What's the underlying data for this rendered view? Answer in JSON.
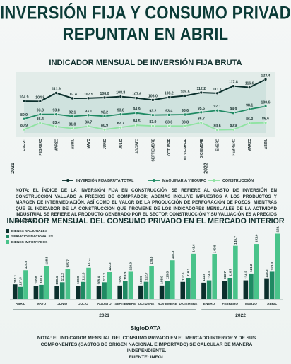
{
  "headline": [
    "INVERSIÓN FIJA Y CONSUMO PRIVADO",
    "REPUNTAN EN ABRIL"
  ],
  "credit": "SigloDATA",
  "chart_data": [
    {
      "type": "line",
      "title": "INDICADOR MENSUAL DE INVERSIÓN FIJA BRUTA",
      "categories": [
        "ENERO",
        "FEBRERO",
        "MARZO",
        "ABRIL",
        "MAYO",
        "JUNIO",
        "JULIO",
        "AGOSTO",
        "SEPTIEMBRE",
        "OCTUBRE",
        "NOVIEMBRE",
        "DICIEMBRE",
        "ENERO",
        "FEBRERO",
        "MARZO",
        "ABRIL"
      ],
      "year_labels": [
        {
          "label": "2021",
          "index": 0
        },
        {
          "label": "2022",
          "index": 12
        }
      ],
      "series": [
        {
          "name": "INVERSIÓN FIJA BRUTA TOTAL",
          "color": "#0b2f2c",
          "values": [
            104.9,
            104.8,
            111.9,
            107.4,
            107.5,
            108.0,
            108.8,
            107.6,
            106.0,
            108.2,
            109.5,
            112.2,
            111.7,
            117.8,
            116.6,
            123.4
          ]
        },
        {
          "name": "MAQUINARIA Y EQUIPO",
          "color": "#1f8a63",
          "values": [
            89.9,
            93.8,
            93.8,
            92.1,
            93.1,
            92.2,
            93.8,
            94.9,
            93.2,
            93.4,
            93.6,
            95.5,
            97.1,
            94.9,
            98.1,
            100.6
          ]
        },
        {
          "name": "CONSTRUCCIÓN",
          "color": "#8fe3a2",
          "values": [
            80.9,
            86.4,
            83.4,
            81.8,
            83.7,
            80.9,
            82.7,
            84.5,
            83.9,
            83.8,
            83.8,
            86.7,
            80.6,
            80.9,
            86.3,
            86.6
          ]
        }
      ],
      "note": "NOTA: EL ÍNDICE DE LA INVERSIÓN FIJA EN CONSTRUCCIÓN SE REFIERE AL GASTO DE INVERSIÓN EN CONSTRUCCIÓN VALUADO A PRECIOS DE COMPRADOR; ADEMÁS INCLUYE IMPUESTOS A LOS PRODUCTOS Y MARGEN DE INTERMEDIACIÓN. ASÍ COMO EL VALOR DE LA PRODUCCIÓN DE PERFORACIÓN DE POZOS; MIENTRAS QUE EL INDICADOR DE LA CONSTRUCCIÓN QUE PROVIENE DE LOS INDICADORES MENSUALES DE LA ACTIVIDAD INDUSTRIAL SE REFIERE AL PRODUCTO GENERADO POR EL SECTOR CONSTRUCCIÓN Y SU VALUACIÓN ES A PRECIOS BÁSICOS."
    },
    {
      "type": "bar",
      "title": "INDICADOR MENSUAL DEL CONSUMO PRIVADO EN EL MERCADO INTERIOR",
      "categories": [
        "ABRIL",
        "MAYO",
        "JUNIO",
        "JULIO",
        "AGOSTO",
        "SEPTIEMBRE",
        "OCTUBRE",
        "NOVIEMBRE",
        "DICIEMBRE",
        "ENERO",
        "FEBRERO",
        "MARZO",
        "ABRIL"
      ],
      "year_labels": [
        {
          "label": "2021",
          "from": 0,
          "to": 8
        },
        {
          "label": "2022",
          "from": 9,
          "to": 12
        }
      ],
      "legend_position": "top-left",
      "series": [
        {
          "name": "BIENES NACIONALES",
          "color": "#0b2f2c",
          "values": [
            110.1,
            108.8,
            108.4,
            108.8,
            108.4,
            108.9,
            108.9,
            108.9,
            112.6,
            111.8,
            113.7,
            114.2,
            115.6
          ]
        },
        {
          "name": "SERVICIOS NACIONALES",
          "color": "#1f8a63",
          "values": [
            107.5,
            109.6,
            112.2,
            112.6,
            112.2,
            113.3,
            112.7,
            113.8,
            116.7,
            114.2,
            116.7,
            121.2,
            123.0
          ]
        },
        {
          "name": "BIENES IMPORTADOS",
          "color": "#49c38a",
          "values": [
            124.6,
            128.8,
            125.7,
            127.1,
            122.6,
            123.0,
            129.0,
            134.8,
            141.6,
            140.8,
            149.7,
            151.6,
            162.2
          ]
        }
      ],
      "note": "NOTA: EL INDICADOR MENSUAL DEL CONSUMO PRIVADO EN EL MERCADO INTERIOR Y DE SUS COMPONENTES (GASTOS DE ORIGEN NACIONAL E IMPORTADO) SE CALCULAR DE MANERA INDEPENDIENTE.",
      "source": "FUENTE: INEGI."
    }
  ]
}
